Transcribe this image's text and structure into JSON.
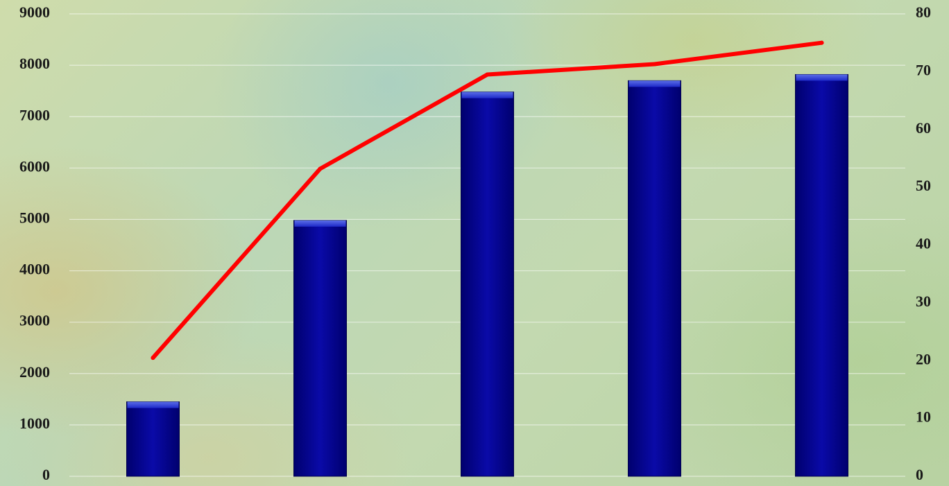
{
  "chart_data": {
    "type": "bar",
    "categories": [
      "",
      "",
      "",
      "",
      ""
    ],
    "series": [
      {
        "type": "bar",
        "axis": "left",
        "values": [
          1450,
          4980,
          7480,
          7700,
          7820
        ],
        "color": "#0a0a9a"
      },
      {
        "type": "line",
        "axis": "right",
        "values": [
          20.5,
          53.2,
          69.5,
          71.3,
          75.0
        ],
        "color": "#ff0000"
      }
    ],
    "y_left": {
      "ylim": [
        0,
        9000
      ],
      "ticks": [
        "0",
        "1000",
        "2000",
        "3000",
        "4000",
        "5000",
        "6000",
        "7000",
        "8000",
        "9000"
      ]
    },
    "y_right": {
      "ylim": [
        0,
        80
      ],
      "ticks": [
        "0",
        "10",
        "20",
        "30",
        "40",
        "50",
        "60",
        "70",
        "80"
      ]
    },
    "grid": true,
    "legend": "none",
    "title": "",
    "xlabel": "",
    "ylabel": ""
  }
}
